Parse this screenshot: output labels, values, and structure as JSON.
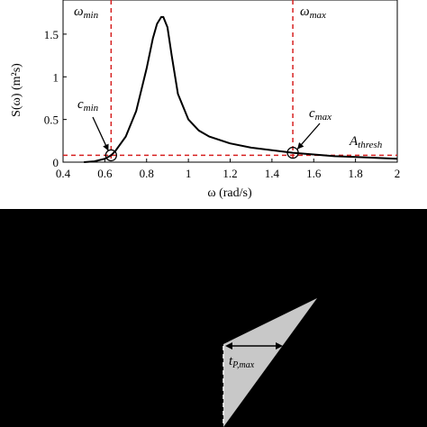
{
  "chart_data": {
    "type": "line",
    "xlabel": "ω (rad/s)",
    "ylabel": "S(ω) (m²s)",
    "xlim": [
      0.4,
      2
    ],
    "ylim": [
      0,
      1.9
    ],
    "x_ticks": [
      "0.4",
      "0.6",
      "0.8",
      "1",
      "1.2",
      "1.4",
      "1.6",
      "1.8",
      "2"
    ],
    "y_ticks": [
      "0",
      "0.5",
      "1",
      "1.5"
    ],
    "grid": false,
    "series": [
      {
        "x": [
          0.5,
          0.55,
          0.6,
          0.63,
          0.65,
          0.7,
          0.75,
          0.8,
          0.83,
          0.85,
          0.87,
          0.88,
          0.9,
          0.92,
          0.95,
          1.0,
          1.05,
          1.1,
          1.2,
          1.3,
          1.4,
          1.5,
          1.6,
          1.7,
          1.8,
          1.9,
          2.0
        ],
        "y": [
          0.0,
          0.01,
          0.04,
          0.08,
          0.13,
          0.3,
          0.6,
          1.1,
          1.45,
          1.62,
          1.7,
          1.7,
          1.58,
          1.25,
          0.8,
          0.5,
          0.37,
          0.3,
          0.22,
          0.17,
          0.14,
          0.11,
          0.09,
          0.07,
          0.06,
          0.05,
          0.04
        ]
      }
    ],
    "threshold": {
      "y": 0.08,
      "label_main": "A",
      "label_sub": "thresh"
    },
    "vlines": [
      {
        "x": 0.63,
        "label_main": "ω",
        "label_sub": "min"
      },
      {
        "x": 1.5,
        "label_main": "ω",
        "label_sub": "max"
      }
    ],
    "markers": [
      {
        "x": 0.63,
        "y": 0.08,
        "label_main": "c",
        "label_sub": "min"
      },
      {
        "x": 1.5,
        "y": 0.11,
        "label_main": "c",
        "label_sub": "max"
      }
    ]
  },
  "lower_panel": {
    "label_main": "t",
    "label_sub": "P,max"
  },
  "colors": {
    "curve": "#000000",
    "dashed": "#d62020",
    "triangle": "#c8c8c8",
    "background": "#000000",
    "plot_bg": "#ffffff"
  }
}
